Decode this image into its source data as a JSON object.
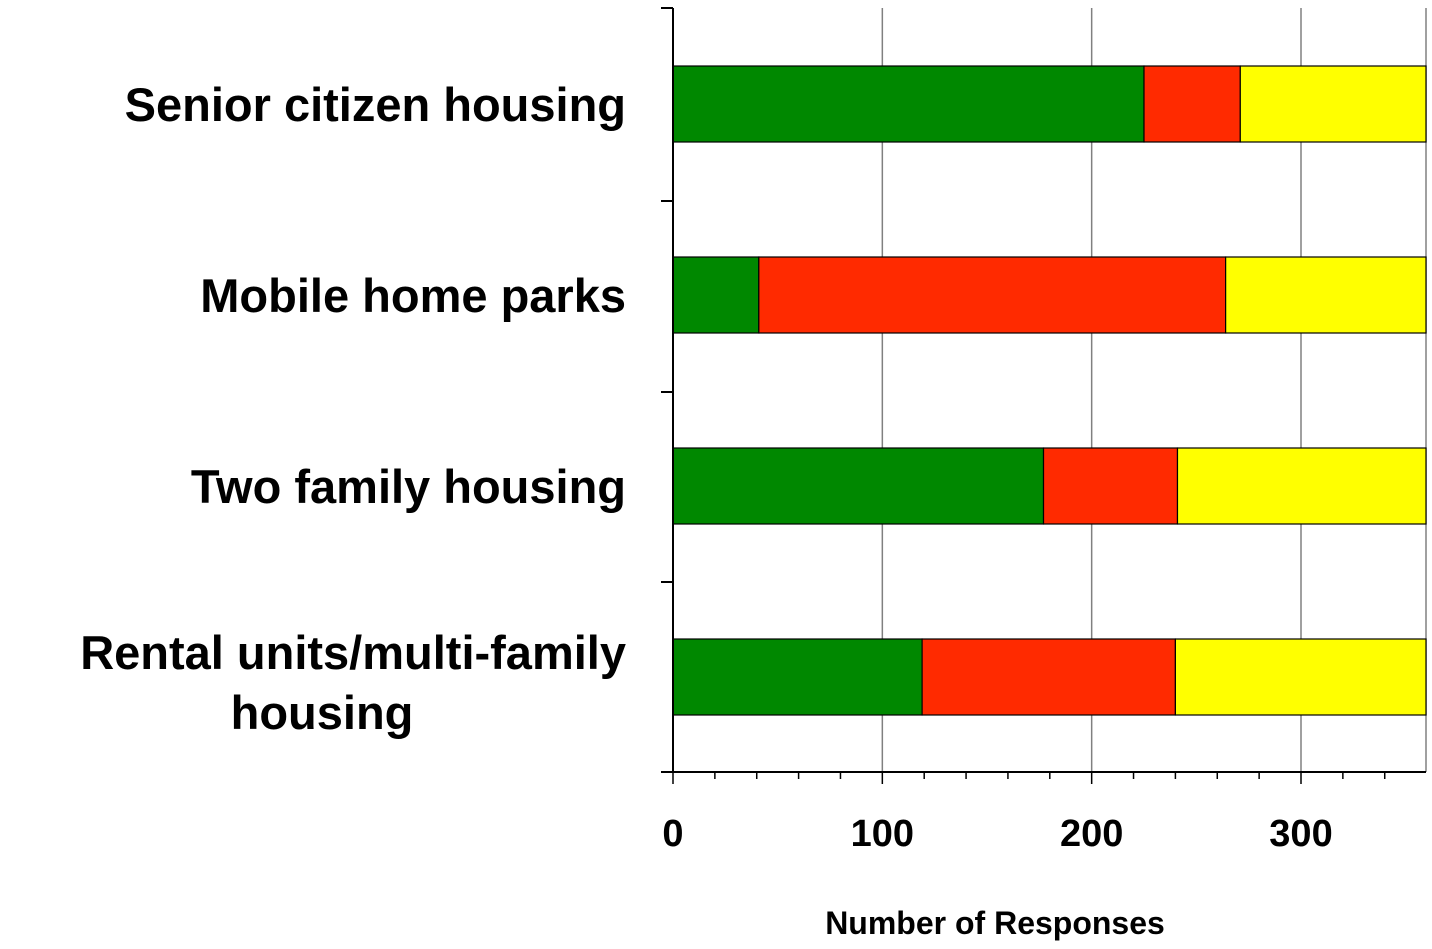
{
  "chart_data": {
    "type": "bar",
    "orientation": "horizontal",
    "stacked": true,
    "categories": [
      "Senior citizen housing",
      "Mobile home parks",
      "Two family housing",
      "Rental units/multi-family housing"
    ],
    "category_label_lines": [
      [
        "Senior citizen housing"
      ],
      [
        "Mobile home parks"
      ],
      [
        "Two family housing"
      ],
      [
        "Rental units/multi-family",
        "housing"
      ]
    ],
    "series": [
      {
        "values": [
          225,
          41,
          177,
          119
        ],
        "color": "#008800"
      },
      {
        "values": [
          46,
          223,
          64,
          121
        ],
        "color": "#ff2a00"
      },
      {
        "values": [
          89,
          96,
          119,
          120
        ],
        "color": "#ffff00"
      }
    ],
    "xlabel": "Number of Responses",
    "ylabel": "",
    "title": "",
    "xlim": [
      0,
      360
    ],
    "x_ticks": [
      0,
      100,
      200,
      300
    ],
    "x_tick_labels": [
      "0",
      "100",
      "200",
      "300"
    ],
    "x_minor_step": 20,
    "grid": "vertical",
    "legend": "none"
  }
}
